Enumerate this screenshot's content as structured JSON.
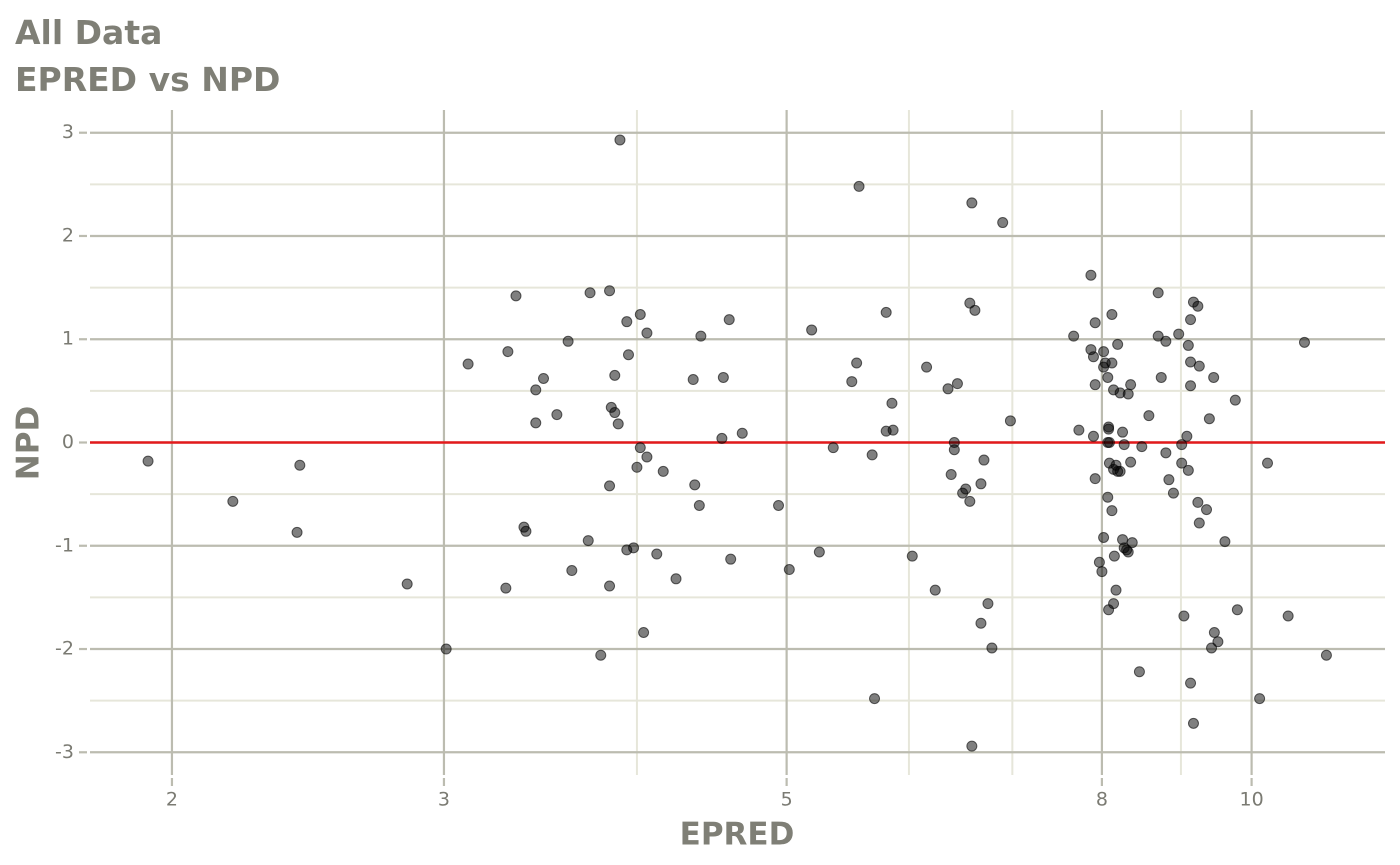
{
  "chart_data": {
    "type": "scatter",
    "title": "All Data",
    "subtitle": "EPRED vs NPD",
    "x_label": "EPRED",
    "y_label": "NPD",
    "xscale": "log",
    "grid": true,
    "xlim": [
      1.77,
      12.2
    ],
    "xticks": [
      2,
      3,
      5,
      8,
      10
    ],
    "xminor": [
      4,
      6,
      7,
      9
    ],
    "ylim": [
      -3.22,
      3.22
    ],
    "yticks": [
      -3,
      -2,
      -1,
      0,
      1,
      2,
      3
    ],
    "yminor": [
      -2.5,
      -1.5,
      -0.5,
      0.5,
      1.5,
      2.5
    ],
    "reference_line": {
      "y": 0,
      "color": "#e31a1c"
    },
    "x": [
      1.93,
      2.19,
      2.42,
      2.41,
      2.84,
      3.01,
      3.11,
      3.3,
      3.34,
      3.38,
      3.39,
      3.29,
      3.44,
      3.44,
      3.48,
      3.55,
      3.61,
      3.63,
      3.72,
      3.73,
      3.79,
      3.84,
      3.84,
      3.84,
      3.85,
      3.87,
      3.87,
      3.89,
      3.9,
      3.94,
      3.94,
      3.95,
      3.98,
      4.0,
      4.02,
      4.02,
      4.04,
      4.06,
      4.06,
      4.12,
      4.16,
      4.24,
      4.35,
      4.36,
      4.4,
      4.39,
      4.54,
      4.55,
      4.59,
      4.6,
      4.68,
      4.94,
      5.02,
      5.19,
      5.25,
      5.36,
      5.51,
      5.55,
      5.57,
      5.68,
      5.7,
      5.8,
      5.85,
      5.8,
      5.86,
      6.03,
      6.16,
      6.24,
      6.36,
      6.39,
      6.42,
      6.42,
      6.45,
      6.5,
      6.53,
      6.57,
      6.57,
      6.59,
      6.59,
      6.62,
      6.68,
      6.68,
      6.71,
      6.75,
      6.79,
      6.9,
      6.98,
      7.67,
      7.73,
      7.87,
      7.87,
      7.9,
      7.9,
      7.92,
      7.92,
      7.92,
      7.97,
      8.0,
      8.02,
      8.02,
      8.02,
      8.04,
      8.07,
      8.07,
      8.07,
      8.08,
      8.08,
      8.08,
      8.09,
      8.09,
      8.12,
      8.12,
      8.12,
      8.14,
      8.14,
      8.14,
      8.15,
      8.17,
      8.17,
      8.19,
      8.19,
      8.22,
      8.22,
      8.25,
      8.25,
      8.27,
      8.27,
      8.3,
      8.32,
      8.32,
      8.35,
      8.35,
      8.37,
      8.46,
      8.49,
      8.58,
      8.7,
      8.7,
      8.74,
      8.8,
      8.8,
      8.84,
      8.9,
      8.97,
      9.01,
      9.01,
      9.04,
      9.08,
      9.1,
      9.1,
      9.13,
      9.13,
      9.13,
      9.13,
      9.17,
      9.17,
      9.23,
      9.23,
      9.25,
      9.25,
      9.35,
      9.39,
      9.42,
      9.45,
      9.46,
      9.51,
      9.61,
      9.76,
      9.79,
      10.12,
      10.24,
      10.56,
      10.82,
      11.18
    ],
    "series": [
      {
        "name": "NPD",
        "color": "#000000",
        "values": [
          -0.18,
          -0.57,
          -0.22,
          -0.87,
          -1.37,
          -2.0,
          0.76,
          0.88,
          1.42,
          -0.82,
          -0.86,
          -1.41,
          0.51,
          0.19,
          0.62,
          0.27,
          0.98,
          -1.24,
          -0.95,
          1.45,
          -2.06,
          -1.39,
          1.47,
          -0.42,
          0.34,
          0.65,
          0.29,
          0.18,
          2.93,
          1.17,
          -1.04,
          0.85,
          -1.02,
          -0.24,
          1.24,
          -0.05,
          -1.84,
          1.06,
          -0.14,
          -1.08,
          -0.28,
          -1.32,
          0.61,
          -0.41,
          1.03,
          -0.61,
          0.04,
          0.63,
          1.19,
          -1.13,
          0.09,
          -0.61,
          -1.23,
          1.09,
          -1.06,
          -0.05,
          0.59,
          0.77,
          2.48,
          -0.12,
          -2.48,
          1.26,
          0.38,
          0.11,
          0.12,
          -1.1,
          0.73,
          -1.43,
          0.52,
          -0.31,
          0.0,
          -0.07,
          0.57,
          -0.49,
          -0.45,
          1.35,
          -0.57,
          2.32,
          -2.94,
          1.28,
          -0.4,
          -1.75,
          -0.17,
          -1.56,
          -1.99,
          2.13,
          0.21,
          1.03,
          0.12,
          1.62,
          0.9,
          0.83,
          0.06,
          1.16,
          0.56,
          -0.35,
          -1.16,
          -1.25,
          0.88,
          0.73,
          -0.92,
          0.77,
          0.63,
          0.0,
          -0.53,
          0.15,
          0.13,
          -1.62,
          0.0,
          -0.2,
          1.24,
          0.77,
          -0.66,
          0.51,
          -0.26,
          -1.56,
          -1.1,
          -0.22,
          -1.43,
          0.95,
          -0.28,
          0.48,
          -0.28,
          0.1,
          -0.94,
          -0.02,
          -1.02,
          -1.04,
          -1.06,
          0.47,
          0.56,
          -0.19,
          -0.97,
          -2.22,
          -0.04,
          0.26,
          1.45,
          1.03,
          0.63,
          0.98,
          -0.1,
          -0.36,
          -0.49,
          1.05,
          -0.02,
          -0.2,
          -1.68,
          0.06,
          0.94,
          -0.27,
          1.19,
          0.78,
          0.55,
          -2.33,
          1.36,
          -2.72,
          1.32,
          -0.58,
          0.74,
          -0.78,
          -0.65,
          0.23,
          -1.99,
          0.63,
          -1.84,
          -1.93,
          -0.96,
          0.41,
          -1.62,
          -2.48,
          -0.2,
          -1.68,
          0.97,
          -2.06
        ]
      }
    ]
  }
}
